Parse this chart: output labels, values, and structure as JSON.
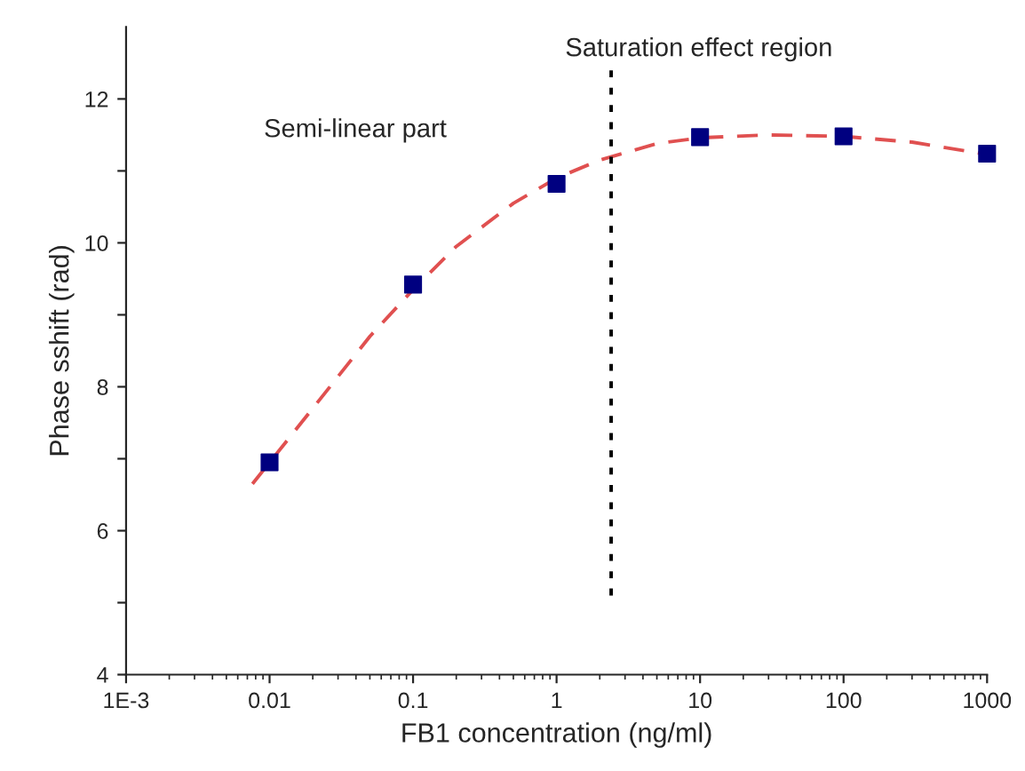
{
  "chart_data": {
    "type": "scatter",
    "xlabel": "FB1 concentration (ng/ml)",
    "ylabel": "Phase sshift (rad)",
    "log": "x",
    "xlim": [
      0.001,
      1000
    ],
    "ylim": [
      4,
      13
    ],
    "xticks": [
      {
        "value": 0.001,
        "label": "1E-3"
      },
      0.01,
      0.1,
      1,
      10,
      100,
      1000
    ],
    "yticks": [
      4,
      {
        "value": 5,
        "label": null
      },
      6,
      {
        "value": 7,
        "label": null
      },
      8,
      {
        "value": 9,
        "label": null
      },
      10,
      {
        "value": 11,
        "label": null
      },
      12
    ],
    "grid": false,
    "legend": false,
    "annotations": [
      "Semi-linear part",
      "Saturation effect region"
    ],
    "series": [
      {
        "type": "line",
        "color": "#e05050",
        "line_style": "dashed",
        "marker": "none",
        "x": [
          0.0076,
          0.02,
          0.05,
          0.1,
          0.2,
          0.5,
          1,
          2,
          5,
          10,
          30,
          100,
          300,
          1000
        ],
        "values": [
          6.65,
          7.7,
          8.7,
          9.35,
          9.95,
          10.55,
          10.9,
          11.15,
          11.38,
          11.46,
          11.5,
          11.48,
          11.4,
          11.23
        ]
      },
      {
        "type": "line",
        "color": "#000000",
        "line_style": "dotted",
        "marker": "none",
        "x": [
          2.4,
          2.4
        ],
        "values": [
          5.1,
          12.4
        ]
      },
      {
        "color": "#000080",
        "marker": "square",
        "x": [
          0.01,
          0.1,
          1,
          10,
          100,
          1000
        ],
        "values": [
          6.95,
          9.42,
          10.82,
          11.47,
          11.48,
          11.24
        ]
      }
    ]
  }
}
